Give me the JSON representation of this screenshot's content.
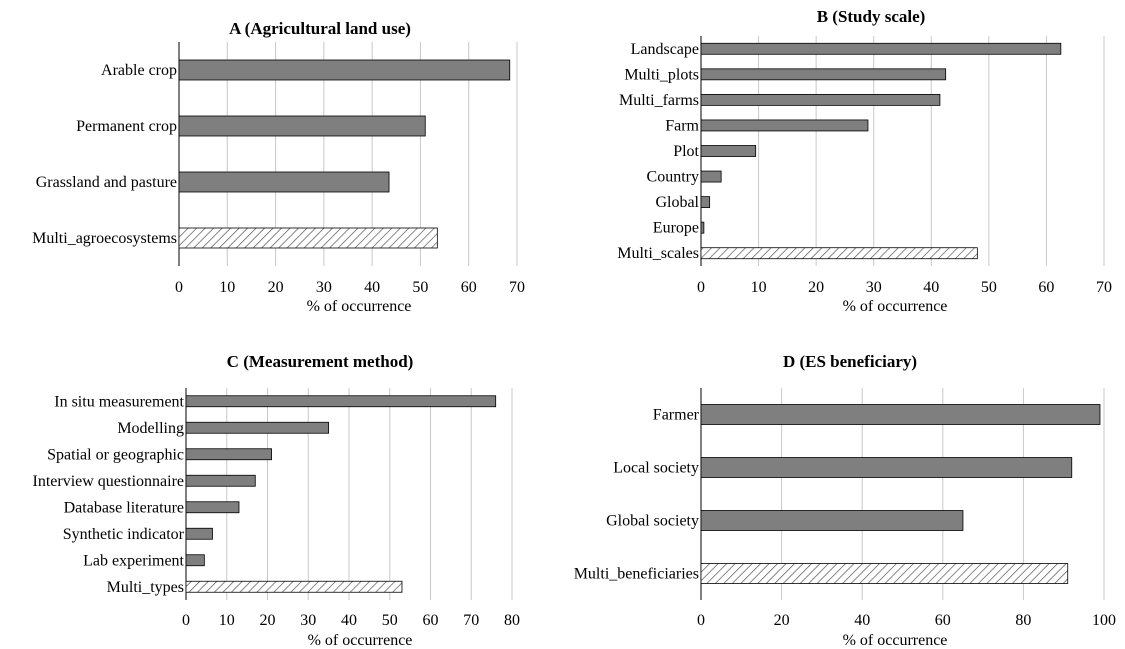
{
  "chart_data": [
    {
      "type": "bar",
      "orientation": "horizontal",
      "title": "A (Agricultural land use)",
      "xlabel": "% of occurrence",
      "categories": [
        "Arable crop",
        "Permanent crop",
        "Grassland and pasture",
        "Multi_agroecosystems"
      ],
      "values": [
        68.5,
        51,
        43.5,
        53.5
      ],
      "hatched": [
        false,
        false,
        false,
        true
      ],
      "xlim": [
        0,
        70
      ],
      "xticks": [
        0,
        10,
        20,
        30,
        40,
        50,
        60,
        70
      ],
      "grid": true
    },
    {
      "type": "bar",
      "orientation": "horizontal",
      "title": "B (Study scale)",
      "xlabel": "% of occurrence",
      "categories": [
        "Landscape",
        "Multi_plots",
        "Multi_farms",
        "Farm",
        "Plot",
        "Country",
        "Global",
        "Europe",
        "Multi_scales"
      ],
      "values": [
        62.5,
        42.5,
        41.5,
        29,
        9.5,
        3.5,
        1.5,
        0.5,
        48
      ],
      "hatched": [
        false,
        false,
        false,
        false,
        false,
        false,
        false,
        false,
        true
      ],
      "xlim": [
        0,
        70
      ],
      "xticks": [
        0,
        10,
        20,
        30,
        40,
        50,
        60,
        70
      ],
      "grid": true
    },
    {
      "type": "bar",
      "orientation": "horizontal",
      "title": "C (Measurement method)",
      "xlabel": "% of occurrence",
      "categories": [
        "In situ measurement",
        "Modelling",
        "Spatial or geographic",
        "Interview questionnaire",
        "Database literature",
        "Synthetic indicator",
        "Lab experiment",
        "Multi_types"
      ],
      "values": [
        76,
        35,
        21,
        17,
        13,
        6.5,
        4.5,
        53
      ],
      "hatched": [
        false,
        false,
        false,
        false,
        false,
        false,
        false,
        true
      ],
      "xlim": [
        0,
        80
      ],
      "xticks": [
        0,
        10,
        20,
        30,
        40,
        50,
        60,
        70,
        80
      ],
      "grid": true
    },
    {
      "type": "bar",
      "orientation": "horizontal",
      "title": "D (ES beneficiary)",
      "xlabel": "% of occurrence",
      "categories": [
        "Farmer",
        "Local society",
        "Global society",
        "Multi_beneficiaries"
      ],
      "values": [
        99,
        92,
        65,
        91
      ],
      "hatched": [
        false,
        false,
        false,
        true
      ],
      "xlim": [
        0,
        100
      ],
      "xticks": [
        0,
        20,
        40,
        60,
        80,
        100
      ],
      "grid": true
    }
  ]
}
